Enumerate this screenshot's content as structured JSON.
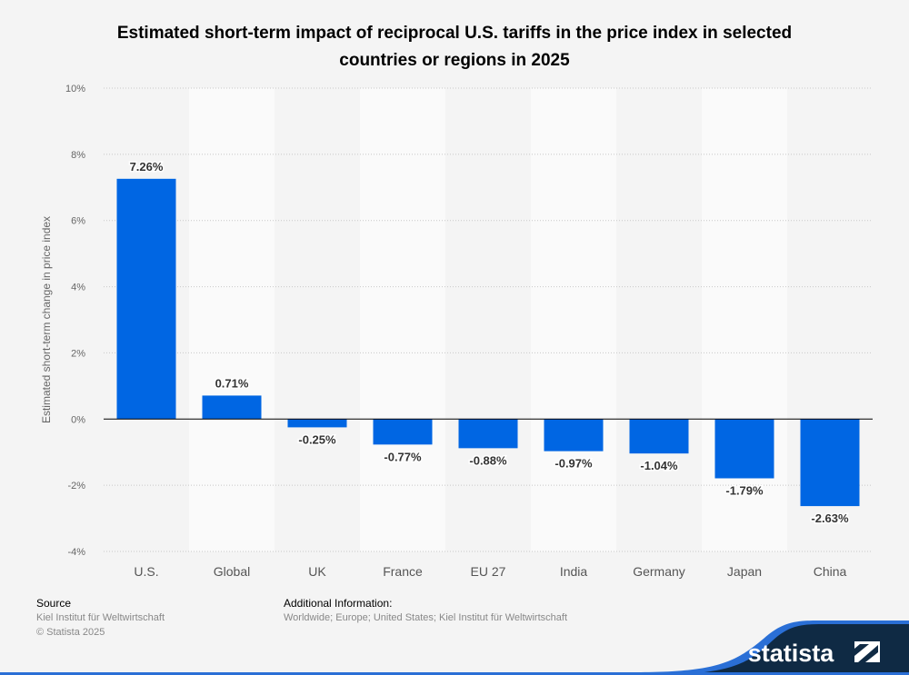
{
  "title": "Estimated short-term impact of reciprocal U.S. tariffs in the price index in selected countries or regions in 2025",
  "chart_data": {
    "type": "bar",
    "title": "Estimated short-term impact of reciprocal U.S. tariffs in the price index in selected countries or regions in 2025",
    "xlabel": "",
    "ylabel": "Estimated short-term change in price index",
    "categories": [
      "U.S.",
      "Global",
      "UK",
      "France",
      "EU 27",
      "India",
      "Germany",
      "Japan",
      "China"
    ],
    "values": [
      7.26,
      0.71,
      -0.25,
      -0.77,
      -0.88,
      -0.97,
      -1.04,
      -1.79,
      -2.63
    ],
    "value_labels": [
      "7.26%",
      "0.71%",
      "-0.25%",
      "-0.77%",
      "-0.88%",
      "-0.97%",
      "-1.04%",
      "-1.79%",
      "-2.63%"
    ],
    "ylim": [
      -4,
      10
    ],
    "yticks": [
      -4,
      -2,
      0,
      2,
      4,
      6,
      8,
      10
    ],
    "ytick_labels": [
      "-4%",
      "-2%",
      "0%",
      "2%",
      "4%",
      "6%",
      "8%",
      "10%"
    ],
    "grid": true,
    "bar_color": "#0066e3"
  },
  "footer": {
    "source_heading": "Source",
    "source_text": "Kiel Institut für Weltwirtschaft",
    "copyright": "© Statista 2025",
    "additional_heading": "Additional Information:",
    "additional_text": "Worldwide; Europe; United States; Kiel Institut für Weltwirtschaft"
  },
  "logo": {
    "text": "statista"
  }
}
